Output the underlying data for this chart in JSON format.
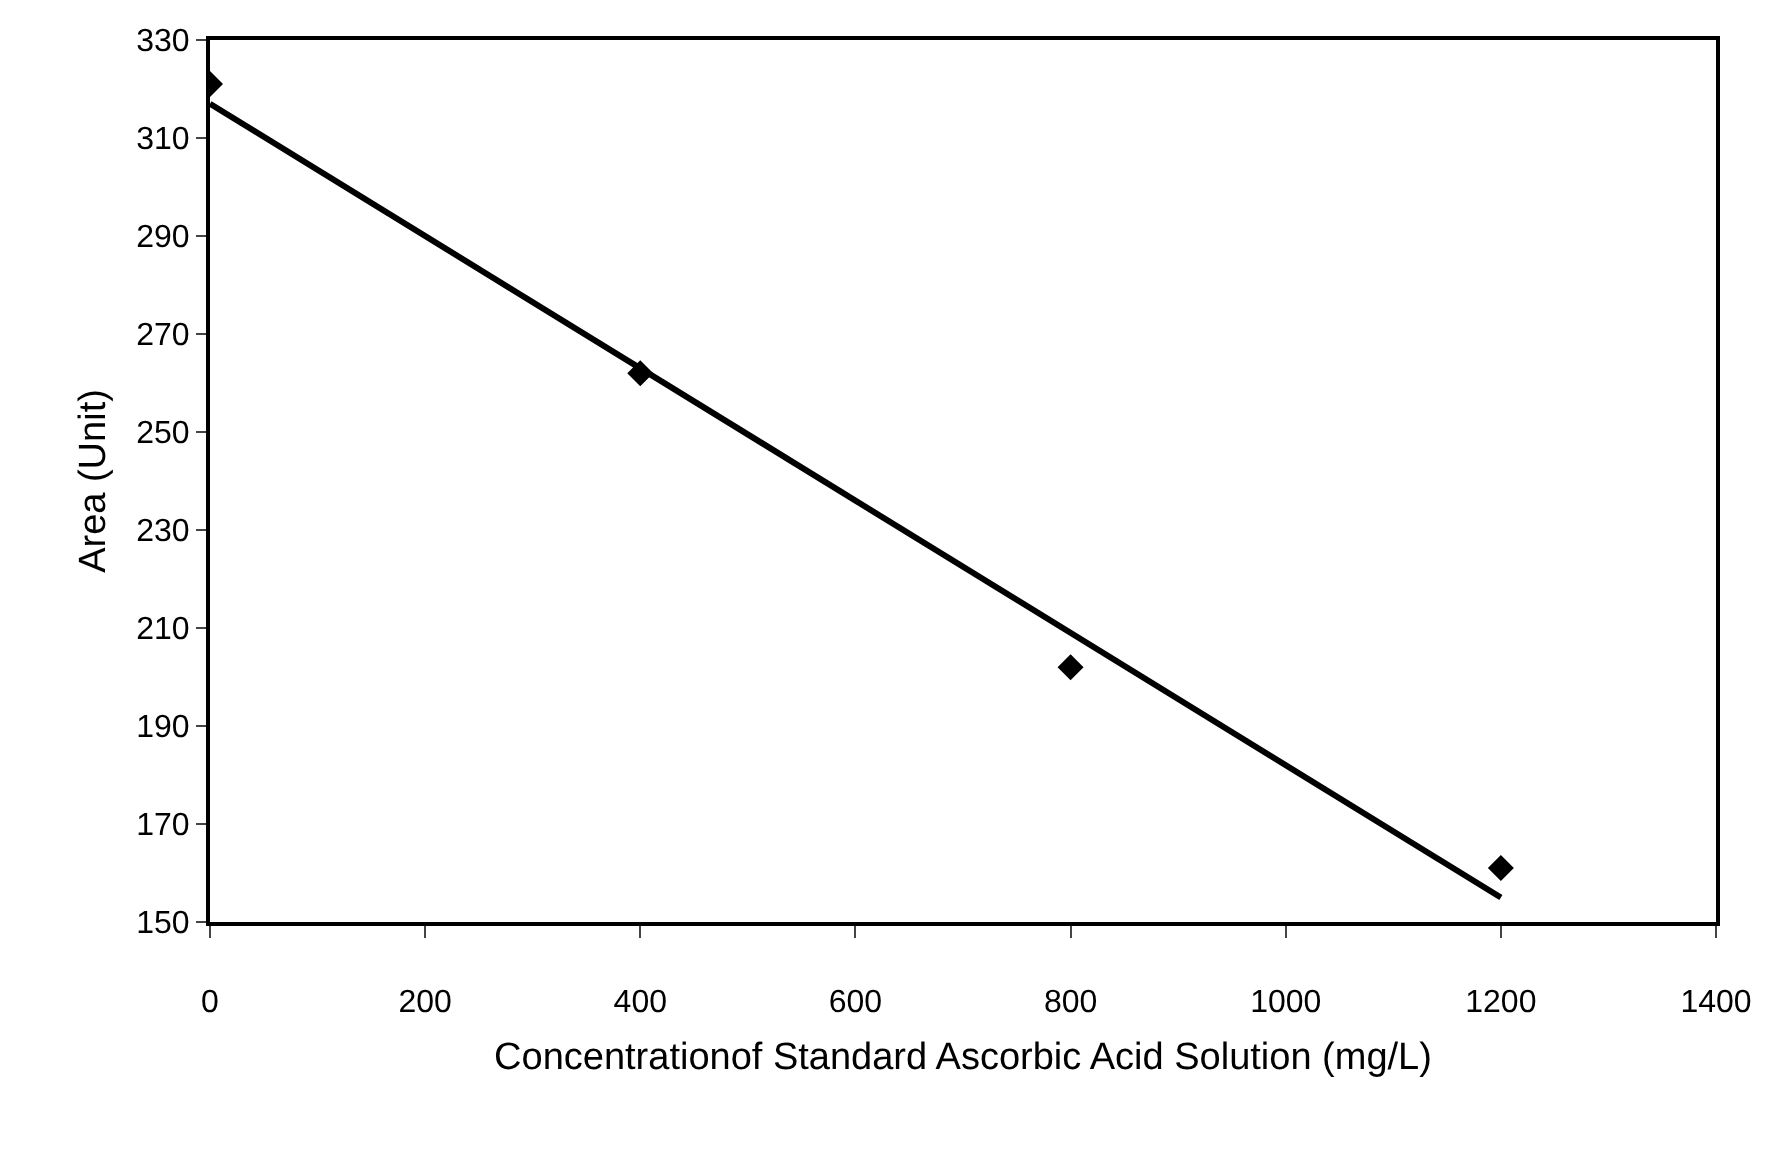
{
  "chart_data": {
    "type": "scatter",
    "xlabel": "Concentrationof Standard Ascorbic Acid Solution (mg/L)",
    "ylabel": "Area (Unit)",
    "x": [
      0,
      400,
      800,
      1200
    ],
    "series": [
      {
        "color": "#000000",
        "values": [
          321,
          262,
          202,
          161
        ],
        "marker": "diamond"
      },
      {
        "type": "line",
        "color": "#000000",
        "x": [
          0,
          1200
        ],
        "values": [
          317,
          155
        ],
        "line_style": "solid"
      }
    ],
    "xlim": [
      0,
      1400
    ],
    "xticks": [
      0,
      200,
      400,
      600,
      800,
      1000,
      1200,
      1400
    ],
    "ylim": [
      150,
      330
    ],
    "yticks": [
      150,
      170,
      190,
      210,
      230,
      250,
      270,
      290,
      310,
      330
    ],
    "grid": false
  }
}
